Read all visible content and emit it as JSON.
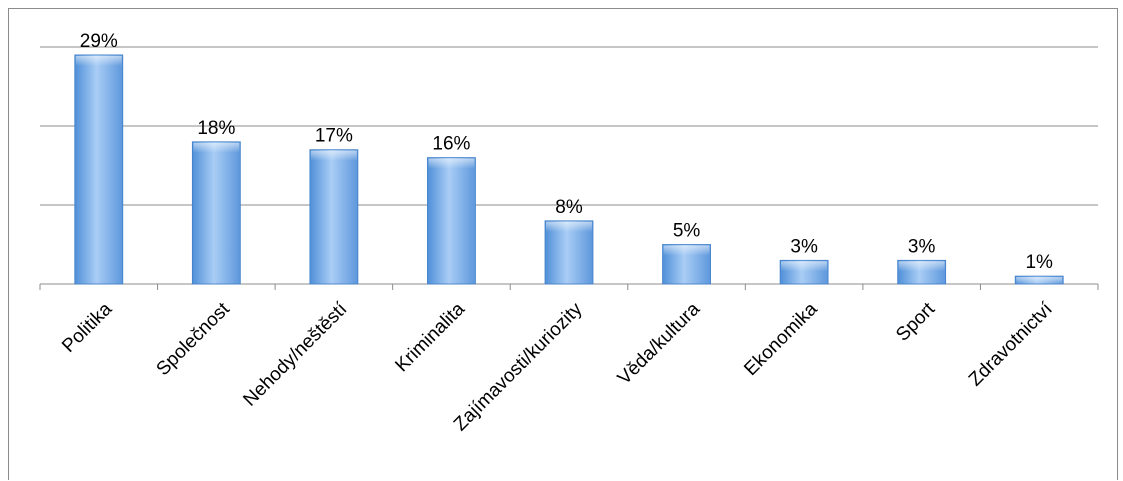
{
  "chart_data": {
    "type": "bar",
    "categories": [
      "Politika",
      "Společnost",
      "Nehody/neštěstí",
      "Kriminalita",
      "Zajímavosti/kuriozity",
      "Věda/kultura",
      "Ekonomika",
      "Sport",
      "Zdravotnictví"
    ],
    "values": [
      29,
      18,
      17,
      16,
      8,
      5,
      3,
      3,
      1
    ],
    "value_labels": [
      "29%",
      "18%",
      "17%",
      "16%",
      "8%",
      "5%",
      "3%",
      "3%",
      "1%"
    ],
    "title": "",
    "xlabel": "",
    "ylabel": "",
    "ylim": [
      0,
      30
    ],
    "grid": true,
    "bar_color": "#7fb2ec",
    "gridline_color": "#8c8c8c",
    "legend": "none"
  }
}
